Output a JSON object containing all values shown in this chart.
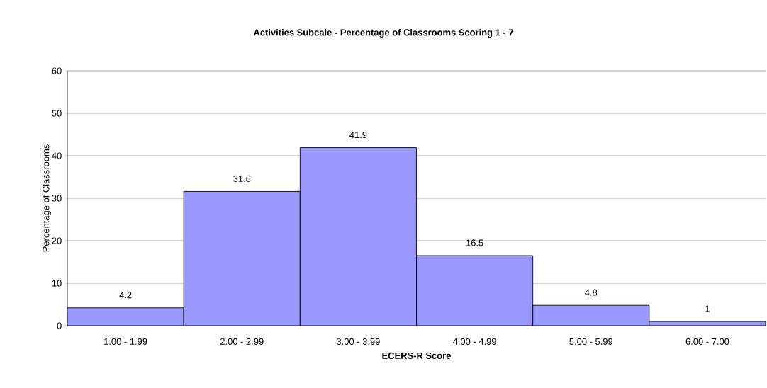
{
  "chart_data": {
    "type": "bar",
    "title": "Activities Subcale - Percentage of Classrooms Scoring 1 - 7",
    "xlabel": "ECERS-R Score",
    "ylabel": "Percentage of Classrooms",
    "categories": [
      "1.00 - 1.99",
      "2.00 - 2.99",
      "3.00 - 3.99",
      "4.00 - 4.99",
      "5.00 - 5.99",
      "6.00 - 7.00"
    ],
    "values": [
      4.2,
      31.6,
      41.9,
      16.5,
      4.8,
      1
    ],
    "color": "#9999ff",
    "ylim": [
      0,
      60
    ],
    "yticks": [
      0,
      10,
      20,
      30,
      40,
      50,
      60
    ],
    "grid": "y",
    "data_labels": true
  }
}
